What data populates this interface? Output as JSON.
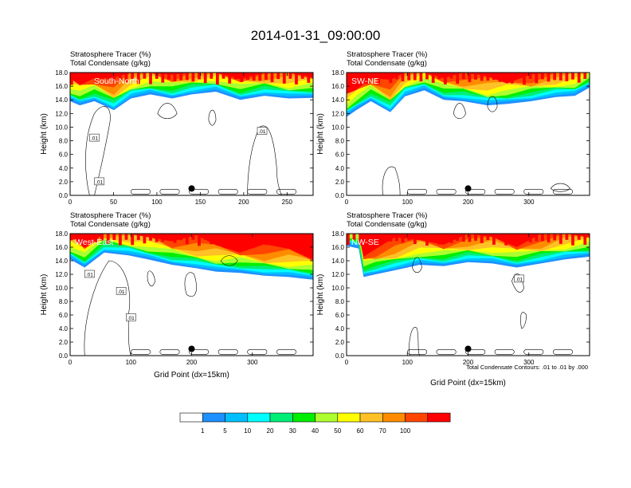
{
  "title": "2014-01-31_09:00:00",
  "colorbar": {
    "levels": [
      "1",
      "5",
      "10",
      "20",
      "30",
      "40",
      "50",
      "60",
      "70",
      "100"
    ],
    "colors": [
      "#ffffff",
      "#1e90ff",
      "#00bfff",
      "#00ffff",
      "#00ee76",
      "#00ee00",
      "#adff2f",
      "#ffff00",
      "#ffc125",
      "#ff8c00",
      "#ff4500",
      "#ff0000"
    ]
  },
  "footnote": "Total Condensate Contours: .01 to .01 by .000",
  "chart_data": [
    {
      "type": "heatmap",
      "region_label": "South-North",
      "title_line1": "Stratosphere Tracer   (%)",
      "title_line2": "Total Condensate   (g/kg)",
      "ylabel": "Height (km)",
      "xlabel": "",
      "xlim": [
        0,
        280
      ],
      "ylim": [
        0,
        18
      ],
      "xticks": [
        "0",
        "50",
        "100",
        "150",
        "200",
        "250"
      ],
      "yticks": [
        "0.0",
        "2.0",
        "4.0",
        "6.0",
        "8.0",
        "10.0",
        "12.0",
        "14.0",
        "16.0",
        "18.0"
      ],
      "marker_x": 140,
      "contour_labels": [
        ".01",
        ".01",
        ".01"
      ]
    },
    {
      "type": "heatmap",
      "region_label": "SW-NE",
      "title_line1": "Stratosphere Tracer   (%)",
      "title_line2": "Total Condensate   (g/kg)",
      "ylabel": "Height (km)",
      "xlabel": "",
      "xlim": [
        0,
        400
      ],
      "ylim": [
        0,
        18
      ],
      "xticks": [
        "0",
        "100",
        "200",
        "300"
      ],
      "yticks": [
        "0.0",
        "2.0",
        "4.0",
        "6.0",
        "8.0",
        "10.0",
        "12.0",
        "14.0",
        "16.0",
        "18.0"
      ],
      "marker_x": 200,
      "contour_labels": []
    },
    {
      "type": "heatmap",
      "region_label": "West-East",
      "title_line1": "Stratosphere Tracer   (%)",
      "title_line2": "Total Condensate   (g/kg)",
      "ylabel": "Height (km)",
      "xlabel": "Grid Point (dx=15km)",
      "xlim": [
        0,
        400
      ],
      "ylim": [
        0,
        18
      ],
      "xticks": [
        "0",
        "100",
        "200",
        "300"
      ],
      "yticks": [
        "0.0",
        "2.0",
        "4.0",
        "6.0",
        "8.0",
        "10.0",
        "12.0",
        "14.0",
        "16.0",
        "18.0"
      ],
      "marker_x": 200,
      "contour_labels": [
        ".01",
        ".01",
        ".01"
      ]
    },
    {
      "type": "heatmap",
      "region_label": "NW-SE",
      "title_line1": "Stratosphere Tracer   (%)",
      "title_line2": "Total Condensate   (g/kg)",
      "ylabel": "Height (km)",
      "xlabel": "Grid Point (dx=15km)",
      "xlim": [
        0,
        400
      ],
      "ylim": [
        0,
        18
      ],
      "xticks": [
        "0",
        "100",
        "200",
        "300"
      ],
      "yticks": [
        "0.0",
        "2.0",
        "4.0",
        "6.0",
        "8.0",
        "10.0",
        "12.0",
        "14.0",
        "16.0",
        "18.0"
      ],
      "marker_x": 200,
      "contour_labels": [
        ".01"
      ]
    }
  ]
}
